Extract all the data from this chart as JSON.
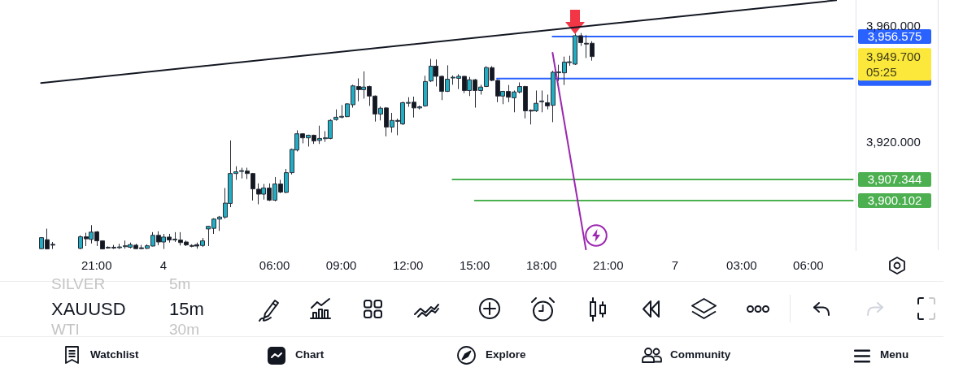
{
  "chart_data": {
    "type": "candlestick",
    "title": "XAUUSD",
    "subtitle": "15m",
    "categories": [
      null,
      null,
      null,
      null,
      null,
      null,
      null,
      null,
      null,
      null,
      "21:00",
      null,
      null,
      null,
      null,
      null,
      null,
      null,
      null,
      null,
      null,
      null,
      "4",
      null,
      null,
      null,
      null,
      null,
      null,
      null,
      null,
      null,
      null,
      null,
      null,
      null,
      null,
      null,
      null,
      null,
      null,
      null,
      "06:00",
      null,
      null,
      null,
      null,
      null,
      null,
      null,
      null,
      null,
      null,
      null,
      "09:00",
      null,
      null,
      null,
      null,
      null,
      null,
      null,
      null,
      null,
      null,
      null,
      "12:00",
      null,
      null,
      null,
      null,
      null,
      null,
      null,
      null,
      null,
      null,
      null,
      "15:00",
      null,
      null,
      null,
      null,
      null,
      null,
      null,
      null,
      null,
      null,
      null,
      "18:00",
      null,
      null,
      null,
      null,
      null,
      null,
      null,
      null,
      null,
      null,
      null,
      "21:00",
      null,
      null,
      null,
      null,
      null,
      null,
      null,
      null,
      null,
      null,
      null,
      "7",
      null,
      null,
      null,
      null,
      null,
      null,
      null,
      null,
      null,
      null,
      null,
      "03:00",
      null,
      null,
      null,
      null,
      null,
      null,
      null,
      null,
      null,
      null,
      null,
      "06:00",
      null,
      null,
      null,
      null,
      null,
      null,
      null,
      null
    ],
    "ohlc": [
      [
        3883.5,
        3887.5,
        3883.3,
        3887.3
      ],
      [
        3886.6,
        3890.4,
        3883.3,
        3883.4
      ],
      [
        3885.0,
        3885.8,
        3883.4,
        3884.8
      ],
      null,
      null,
      null,
      null,
      [
        3883.6,
        3888.1,
        3883.3,
        3887.6
      ],
      [
        3887.6,
        3889.0,
        3884.4,
        3886.9
      ],
      [
        3886.7,
        3891.6,
        3885.3,
        3889.2
      ],
      [
        3889.3,
        3889.6,
        3884.4,
        3886.2
      ],
      [
        3886.2,
        3886.4,
        3883.3,
        3883.4
      ],
      [
        3883.9,
        3884.3,
        3883.5,
        3884.0
      ],
      [
        3884.0,
        3884.8,
        3883.4,
        3883.9
      ],
      [
        3883.9,
        3885.2,
        3883.4,
        3884.1
      ],
      [
        3884.2,
        3886.3,
        3883.5,
        3884.5
      ],
      [
        3884.0,
        3885.6,
        3883.6,
        3884.9
      ],
      [
        3884.7,
        3885.2,
        3883.4,
        3883.5
      ],
      [
        3883.8,
        3884.8,
        3883.4,
        3883.7
      ],
      [
        3883.6,
        3885.0,
        3883.4,
        3884.5
      ],
      [
        3884.4,
        3889.2,
        3884.3,
        3888.1
      ],
      [
        3888.1,
        3889.5,
        3884.7,
        3885.8
      ],
      [
        3885.8,
        3888.6,
        3883.4,
        3887.5
      ],
      [
        3887.5,
        3888.6,
        3885.6,
        3886.5
      ],
      [
        3886.7,
        3889.2,
        3885.8,
        3886.8
      ],
      [
        3886.5,
        3889.2,
        3884.6,
        3885.6
      ],
      [
        3885.8,
        3886.3,
        3884.4,
        3884.8
      ],
      [
        3884.6,
        3885.0,
        3884.0,
        3884.5
      ],
      [
        3884.9,
        3885.6,
        3883.5,
        3884.4
      ],
      [
        3884.6,
        3887.2,
        3884.1,
        3886.2
      ],
      [
        3890.3,
        3891.4,
        3884.4,
        3891.2
      ],
      [
        3890.5,
        3894.0,
        3888.6,
        3893.7
      ],
      [
        3893.7,
        3894.8,
        3889.6,
        3894.4
      ],
      [
        3894.4,
        3904.4,
        3893.8,
        3899.2
      ],
      [
        3899.1,
        3920.8,
        3897.8,
        3909.4
      ],
      [
        3909.4,
        3911.9,
        3907.2,
        3910.0
      ],
      [
        3910.3,
        3911.4,
        3907.7,
        3910.4
      ],
      [
        3910.3,
        3911.4,
        3907.5,
        3909.4
      ],
      [
        3909.4,
        3909.6,
        3900.1,
        3904.1
      ],
      [
        3904.0,
        3906.0,
        3898.8,
        3902.3
      ],
      [
        3902.3,
        3905.8,
        3900.4,
        3904.4
      ],
      [
        3904.4,
        3906.0,
        3899.9,
        3900.2
      ],
      [
        3900.2,
        3908.2,
        3899.8,
        3905.8
      ],
      [
        3905.8,
        3907.2,
        3902.6,
        3903.0
      ],
      [
        3902.9,
        3911.0,
        3902.6,
        3909.7
      ],
      [
        3909.7,
        3918.0,
        3909.1,
        3917.7
      ],
      [
        3917.5,
        3924.3,
        3917.0,
        3923.1
      ],
      [
        3923.1,
        3923.3,
        3919.8,
        3921.7
      ],
      [
        3921.7,
        3922.8,
        3918.7,
        3922.6
      ],
      [
        3922.6,
        3922.8,
        3919.6,
        3920.6
      ],
      [
        3920.8,
        3925.9,
        3919.6,
        3921.5
      ],
      [
        3921.6,
        3924.0,
        3920.3,
        3921.7
      ],
      [
        3921.5,
        3928.1,
        3921.2,
        3927.7
      ],
      [
        3928.0,
        3931.5,
        3927.6,
        3928.8
      ],
      [
        3928.9,
        3933.0,
        3928.4,
        3929.1
      ],
      [
        3929.0,
        3933.6,
        3928.8,
        3933.4
      ],
      [
        3933.1,
        3940.0,
        3932.1,
        3939.6
      ],
      [
        3939.4,
        3942.2,
        3934.3,
        3938.3
      ],
      [
        3938.3,
        3944.6,
        3935.2,
        3939.2
      ],
      [
        3939.4,
        3939.7,
        3932.7,
        3936.1
      ],
      [
        3936.1,
        3936.3,
        3927.3,
        3929.9
      ],
      [
        3929.9,
        3932.5,
        3927.7,
        3931.9
      ],
      [
        3932.0,
        3932.3,
        3922.2,
        3925.4
      ],
      [
        3925.4,
        3930.3,
        3923.5,
        3927.7
      ],
      [
        3927.7,
        3928.3,
        3922.6,
        3927.4
      ],
      [
        3926.5,
        3934.2,
        3926.1,
        3933.8
      ],
      [
        3933.8,
        3935.7,
        3932.4,
        3933.9
      ],
      [
        3934.0,
        3935.9,
        3928.7,
        3932.0
      ],
      [
        3932.0,
        3932.8,
        3931.5,
        3932.4
      ],
      [
        3932.7,
        3943.1,
        3932.4,
        3941.1
      ],
      [
        3941.3,
        3948.9,
        3940.9,
        3946.4
      ],
      [
        3946.4,
        3948.7,
        3939.4,
        3942.9
      ],
      [
        3942.9,
        3943.2,
        3934.7,
        3937.7
      ],
      [
        3937.7,
        3946.7,
        3937.5,
        3941.9
      ],
      [
        3942.5,
        3943.2,
        3940.0,
        3942.6
      ],
      [
        3942.2,
        3943.6,
        3938.5,
        3942.9
      ],
      [
        3942.9,
        3943.0,
        3937.1,
        3938.0
      ],
      [
        3938.0,
        3942.7,
        3936.1,
        3941.7
      ],
      [
        3941.7,
        3942.0,
        3932.1,
        3938.0
      ],
      [
        3938.0,
        3940.0,
        3936.6,
        3939.2
      ],
      [
        3939.4,
        3946.4,
        3939.2,
        3945.9
      ],
      [
        3945.9,
        3946.4,
        3941.2,
        3941.5
      ],
      [
        3941.5,
        3941.7,
        3934.0,
        3936.1
      ],
      [
        3936.1,
        3937.9,
        3933.3,
        3937.7
      ],
      [
        3937.7,
        3939.9,
        3934.0,
        3935.7
      ],
      [
        3935.5,
        3938.0,
        3930.5,
        3937.5
      ],
      [
        3937.5,
        3940.8,
        3937.0,
        3939.4
      ],
      [
        3939.4,
        3939.6,
        3928.4,
        3931.0
      ],
      [
        3931.2,
        3931.5,
        3926.3,
        3931.0
      ],
      [
        3931.0,
        3938.0,
        3930.6,
        3933.6
      ],
      [
        3934.3,
        3938.0,
        3930.5,
        3934.4
      ],
      [
        3933.8,
        3936.6,
        3931.5,
        3932.7
      ],
      [
        3932.9,
        3944.8,
        3927.1,
        3944.3
      ],
      [
        3944.3,
        3946.9,
        3941.3,
        3944.4
      ],
      [
        3944.1,
        3949.7,
        3939.9,
        3947.8
      ],
      [
        3947.8,
        3950.0,
        3946.5,
        3947.9
      ],
      [
        3947.1,
        3957.6,
        3946.8,
        3956.9
      ],
      [
        3956.9,
        3957.8,
        3953.4,
        3954.5
      ],
      [
        3954.3,
        3957.1,
        3949.2,
        3954.2
      ],
      [
        3954.3,
        3955.0,
        3948.3,
        3949.7
      ],
      null,
      null,
      null,
      null,
      null,
      null,
      null,
      null,
      null,
      null,
      null,
      null,
      null,
      null,
      null,
      null,
      null,
      null,
      null,
      null,
      null,
      null,
      null,
      null,
      null,
      null,
      null,
      null,
      null,
      null,
      null,
      null,
      null,
      null,
      null,
      null,
      null,
      null,
      null,
      null,
      null,
      null,
      null,
      null,
      null,
      null,
      null
    ],
    "colors": [
      "#22adc2",
      "#131722",
      "#131722",
      null,
      null,
      null,
      null,
      "#22adc2",
      "#131722",
      "#22adc2",
      "#131722",
      "#131722",
      "#22adc2",
      "#131722",
      "#22adc2",
      "#22adc2",
      "#22adc2",
      "#131722",
      "#131722",
      "#22adc2",
      "#22adc2",
      "#131722",
      "#22adc2",
      "#131722",
      "#22adc2",
      "#131722",
      "#131722",
      "#131722",
      "#131722",
      "#22adc2",
      "#22adc2",
      "#22adc2",
      "#22adc2",
      "#22adc2",
      "#22adc2",
      "#22adc2",
      "#22adc2",
      "#131722",
      "#131722",
      "#131722",
      "#22adc2",
      "#131722",
      "#22adc2",
      "#131722",
      "#22adc2",
      "#22adc2",
      "#22adc2",
      "#131722",
      "#22adc2",
      "#131722",
      "#22adc2",
      "#22adc2",
      "#22adc2",
      "#22adc2",
      "#22adc2",
      "#22adc2",
      "#22adc2",
      "#131722",
      "#22adc2",
      "#131722",
      "#131722",
      "#22adc2",
      "#131722",
      "#22adc2",
      "#131722",
      "#22adc2",
      "#22adc2",
      "#131722",
      "#22adc2",
      "#22adc2",
      "#22adc2",
      "#131722",
      "#131722",
      "#22adc2",
      "#22adc2",
      "#22adc2",
      "#131722",
      "#22adc2",
      "#131722",
      "#22adc2",
      "#22adc2",
      "#131722",
      "#131722",
      "#22adc2",
      "#131722",
      "#22adc2",
      "#22adc2",
      "#131722",
      "#131722",
      "#22adc2",
      "#22adc2",
      "#131722",
      "#22adc2",
      "#22adc2",
      "#22adc2",
      "#22adc2",
      "#22adc2",
      "#131722",
      "#131722",
      "#131722",
      null,
      null,
      null,
      null,
      null,
      null,
      null,
      null,
      null,
      null,
      null,
      null,
      null,
      null,
      null,
      null,
      null,
      null,
      null,
      null,
      null,
      null,
      null,
      null,
      null,
      null,
      null,
      null,
      null,
      null,
      null,
      null,
      null,
      null,
      null,
      null,
      null,
      null,
      null,
      null,
      null,
      null,
      null,
      null,
      null,
      null,
      null
    ],
    "series": [
      {
        "type": "line",
        "color": "#131722",
        "values": [
          3940.6,
          null,
          null,
          null,
          null,
          null,
          null,
          null,
          null,
          null,
          null,
          null,
          null,
          null,
          null,
          null,
          null,
          null,
          null,
          null,
          null,
          null,
          null,
          null,
          null,
          null,
          null,
          null,
          null,
          null,
          null,
          null,
          null,
          null,
          null,
          null,
          null,
          null,
          null,
          null,
          null,
          null,
          null,
          null,
          null,
          null,
          null,
          null,
          null,
          null,
          null,
          null,
          null,
          null,
          null,
          null,
          null,
          null,
          null,
          null,
          null,
          null,
          null,
          null,
          null,
          null,
          null,
          null,
          null,
          null,
          null,
          null,
          null,
          null,
          null,
          null,
          null,
          null,
          null,
          null,
          null,
          null,
          null,
          null,
          null,
          null,
          null,
          null,
          null,
          null,
          null,
          null,
          null,
          null,
          null,
          null,
          null,
          null,
          null,
          null,
          null,
          null,
          null,
          null,
          null,
          null,
          null,
          null,
          null,
          null,
          null,
          null,
          null,
          null,
          null,
          null,
          null,
          null,
          null,
          null,
          null,
          null,
          null,
          null,
          null,
          null,
          null,
          null,
          null,
          null,
          null,
          null,
          null,
          null,
          null,
          null,
          null,
          null,
          null,
          null,
          null,
          null,
          null,
          3969.1,
          null,
          null,
          null
        ]
      },
      {
        "type": "line",
        "color": "#9c27b0",
        "values": [
          null,
          null,
          null,
          null,
          null,
          null,
          null,
          null,
          null,
          null,
          null,
          null,
          null,
          null,
          null,
          null,
          null,
          null,
          null,
          null,
          null,
          null,
          null,
          null,
          null,
          null,
          null,
          null,
          null,
          null,
          null,
          null,
          null,
          null,
          null,
          null,
          null,
          null,
          null,
          null,
          null,
          null,
          null,
          null,
          null,
          null,
          null,
          null,
          null,
          null,
          null,
          null,
          null,
          null,
          null,
          null,
          null,
          null,
          null,
          null,
          null,
          null,
          null,
          null,
          null,
          null,
          null,
          null,
          null,
          null,
          null,
          null,
          null,
          null,
          null,
          null,
          null,
          null,
          null,
          null,
          null,
          null,
          null,
          null,
          null,
          null,
          null,
          null,
          null,
          null,
          null,
          null,
          3951.0,
          null,
          null,
          null,
          null,
          null,
          3883.2,
          null,
          null,
          null,
          null,
          null,
          null,
          null,
          null,
          null,
          null,
          null,
          null,
          null,
          null,
          null,
          null,
          null,
          null,
          null,
          null,
          null,
          null,
          null,
          null,
          null,
          null,
          null,
          null,
          null,
          null,
          null,
          null,
          null,
          null,
          null,
          null,
          null,
          null,
          null,
          null,
          null,
          null,
          null,
          null,
          null,
          null,
          null,
          null
        ]
      },
      {
        "type": "line",
        "color": "#2962ff",
        "values": [
          null,
          null,
          null,
          null,
          null,
          null,
          null,
          null,
          null,
          null,
          null,
          null,
          null,
          null,
          null,
          null,
          null,
          null,
          null,
          null,
          null,
          null,
          null,
          null,
          null,
          null,
          null,
          null,
          null,
          null,
          null,
          null,
          null,
          null,
          null,
          null,
          null,
          null,
          null,
          null,
          null,
          null,
          null,
          null,
          null,
          null,
          null,
          null,
          null,
          null,
          null,
          null,
          null,
          null,
          null,
          null,
          null,
          null,
          null,
          null,
          null,
          null,
          null,
          null,
          null,
          null,
          null,
          null,
          null,
          null,
          null,
          null,
          null,
          null,
          null,
          null,
          null,
          null,
          null,
          null,
          null,
          null,
          null,
          null,
          null,
          null,
          null,
          null,
          null,
          null,
          null,
          null,
          3956.575,
          null,
          null,
          null,
          null,
          null,
          null,
          null,
          null,
          null,
          null,
          null,
          null,
          null,
          null,
          null,
          null,
          null,
          null,
          null,
          null,
          null,
          null,
          null,
          null,
          null,
          null,
          null,
          null,
          null,
          null,
          null,
          null,
          null,
          null,
          null,
          null,
          null,
          null,
          null,
          null,
          null,
          null,
          null,
          null,
          null,
          null,
          null,
          null,
          null,
          null,
          null,
          null,
          null,
          3956.575
        ],
        "value_labels": [
          null,
          null,
          null,
          null,
          null,
          null,
          null,
          null,
          null,
          null,
          null,
          null,
          null,
          null,
          null,
          null,
          null,
          null,
          null,
          null,
          null,
          null,
          null,
          null,
          null,
          null,
          null,
          null,
          null,
          null,
          null,
          null,
          null,
          null,
          null,
          null,
          null,
          null,
          null,
          null,
          null,
          null,
          null,
          null,
          null,
          null,
          null,
          null,
          null,
          null,
          null,
          null,
          null,
          null,
          null,
          null,
          null,
          null,
          null,
          null,
          null,
          null,
          null,
          null,
          null,
          null,
          null,
          null,
          null,
          null,
          null,
          null,
          null,
          null,
          null,
          null,
          null,
          null,
          null,
          null,
          null,
          null,
          null,
          null,
          null,
          null,
          null,
          null,
          null,
          null,
          null,
          null,
          null,
          null,
          null,
          null,
          null,
          null,
          null,
          null,
          null,
          null,
          null,
          null,
          null,
          null,
          null,
          null,
          null,
          null,
          null,
          null,
          null,
          null,
          null,
          null,
          null,
          null,
          null,
          null,
          null,
          null,
          null,
          null,
          null,
          null,
          null,
          null,
          null,
          null,
          null,
          null,
          null,
          null,
          null,
          null,
          null,
          null,
          null,
          null,
          null,
          null,
          null,
          null,
          null,
          null,
          "3,956.575"
        ]
      },
      {
        "type": "line",
        "color": "#2962ff",
        "values": [
          null,
          null,
          null,
          null,
          null,
          null,
          null,
          null,
          null,
          null,
          null,
          null,
          null,
          null,
          null,
          null,
          null,
          null,
          null,
          null,
          null,
          null,
          null,
          null,
          null,
          null,
          null,
          null,
          null,
          null,
          null,
          null,
          null,
          null,
          null,
          null,
          null,
          null,
          null,
          null,
          null,
          null,
          null,
          null,
          null,
          null,
          null,
          null,
          null,
          null,
          null,
          null,
          null,
          null,
          null,
          null,
          null,
          null,
          null,
          null,
          null,
          null,
          null,
          null,
          null,
          null,
          null,
          null,
          null,
          null,
          null,
          null,
          null,
          null,
          null,
          null,
          null,
          null,
          null,
          null,
          null,
          null,
          3942.1,
          null,
          null,
          null,
          null,
          null,
          null,
          null,
          null,
          null,
          null,
          null,
          null,
          null,
          null,
          null,
          null,
          null,
          null,
          null,
          null,
          null,
          null,
          null,
          null,
          null,
          null,
          null,
          null,
          null,
          null,
          null,
          null,
          null,
          null,
          null,
          null,
          null,
          null,
          null,
          null,
          null,
          null,
          null,
          null,
          null,
          null,
          null,
          null,
          null,
          null,
          null,
          null,
          null,
          null,
          null,
          null,
          null,
          null,
          null,
          null,
          null,
          null,
          null,
          3942.1
        ]
      },
      {
        "type": "line",
        "color": "#4caf50",
        "values": [
          null,
          null,
          null,
          null,
          null,
          null,
          null,
          null,
          null,
          null,
          null,
          null,
          null,
          null,
          null,
          null,
          null,
          null,
          null,
          null,
          null,
          null,
          null,
          null,
          null,
          null,
          null,
          null,
          null,
          null,
          null,
          null,
          null,
          null,
          null,
          null,
          null,
          null,
          null,
          null,
          null,
          null,
          null,
          null,
          null,
          null,
          null,
          null,
          null,
          null,
          null,
          null,
          null,
          null,
          null,
          null,
          null,
          null,
          null,
          null,
          null,
          null,
          null,
          null,
          null,
          null,
          null,
          null,
          null,
          null,
          null,
          null,
          null,
          null,
          3907.344,
          null,
          null,
          null,
          null,
          null,
          null,
          null,
          null,
          null,
          null,
          null,
          null,
          null,
          null,
          null,
          null,
          null,
          null,
          null,
          null,
          null,
          null,
          null,
          null,
          null,
          null,
          null,
          null,
          null,
          null,
          null,
          null,
          null,
          null,
          null,
          null,
          null,
          null,
          null,
          null,
          null,
          null,
          null,
          null,
          null,
          null,
          null,
          null,
          null,
          null,
          null,
          null,
          null,
          null,
          null,
          null,
          null,
          null,
          null,
          null,
          null,
          null,
          null,
          null,
          null,
          null,
          null,
          null,
          null,
          null,
          null,
          3907.344
        ],
        "value_labels": [
          null,
          null,
          null,
          null,
          null,
          null,
          null,
          null,
          null,
          null,
          null,
          null,
          null,
          null,
          null,
          null,
          null,
          null,
          null,
          null,
          null,
          null,
          null,
          null,
          null,
          null,
          null,
          null,
          null,
          null,
          null,
          null,
          null,
          null,
          null,
          null,
          null,
          null,
          null,
          null,
          null,
          null,
          null,
          null,
          null,
          null,
          null,
          null,
          null,
          null,
          null,
          null,
          null,
          null,
          null,
          null,
          null,
          null,
          null,
          null,
          null,
          null,
          null,
          null,
          null,
          null,
          null,
          null,
          null,
          null,
          null,
          null,
          null,
          null,
          null,
          null,
          null,
          null,
          null,
          null,
          null,
          null,
          null,
          null,
          null,
          null,
          null,
          null,
          null,
          null,
          null,
          null,
          null,
          null,
          null,
          null,
          null,
          null,
          null,
          null,
          null,
          null,
          null,
          null,
          null,
          null,
          null,
          null,
          null,
          null,
          null,
          null,
          null,
          null,
          null,
          null,
          null,
          null,
          null,
          null,
          null,
          null,
          null,
          null,
          null,
          null,
          null,
          null,
          null,
          null,
          null,
          null,
          null,
          null,
          null,
          null,
          null,
          null,
          null,
          null,
          null,
          null,
          null,
          null,
          null,
          null,
          "3,907.344"
        ]
      },
      {
        "type": "line",
        "color": "#4caf50",
        "values": [
          null,
          null,
          null,
          null,
          null,
          null,
          null,
          null,
          null,
          null,
          null,
          null,
          null,
          null,
          null,
          null,
          null,
          null,
          null,
          null,
          null,
          null,
          null,
          null,
          null,
          null,
          null,
          null,
          null,
          null,
          null,
          null,
          null,
          null,
          null,
          null,
          null,
          null,
          null,
          null,
          null,
          null,
          null,
          null,
          null,
          null,
          null,
          null,
          null,
          null,
          null,
          null,
          null,
          null,
          null,
          null,
          null,
          null,
          null,
          null,
          null,
          null,
          null,
          null,
          null,
          null,
          null,
          null,
          null,
          null,
          null,
          null,
          null,
          null,
          null,
          null,
          null,
          null,
          3900.102,
          null,
          null,
          null,
          null,
          null,
          null,
          null,
          null,
          null,
          null,
          null,
          null,
          null,
          null,
          null,
          null,
          null,
          null,
          null,
          null,
          null,
          null,
          null,
          null,
          null,
          null,
          null,
          null,
          null,
          null,
          null,
          null,
          null,
          null,
          null,
          null,
          null,
          null,
          null,
          null,
          null,
          null,
          null,
          null,
          null,
          null,
          null,
          null,
          null,
          null,
          null,
          null,
          null,
          null,
          null,
          null,
          null,
          null,
          null,
          null,
          null,
          null,
          null,
          null,
          null,
          null,
          null,
          3900.102
        ],
        "value_labels": [
          null,
          null,
          null,
          null,
          null,
          null,
          null,
          null,
          null,
          null,
          null,
          null,
          null,
          null,
          null,
          null,
          null,
          null,
          null,
          null,
          null,
          null,
          null,
          null,
          null,
          null,
          null,
          null,
          null,
          null,
          null,
          null,
          null,
          null,
          null,
          null,
          null,
          null,
          null,
          null,
          null,
          null,
          null,
          null,
          null,
          null,
          null,
          null,
          null,
          null,
          null,
          null,
          null,
          null,
          null,
          null,
          null,
          null,
          null,
          null,
          null,
          null,
          null,
          null,
          null,
          null,
          null,
          null,
          null,
          null,
          null,
          null,
          null,
          null,
          null,
          null,
          null,
          null,
          null,
          null,
          null,
          null,
          null,
          null,
          null,
          null,
          null,
          null,
          null,
          null,
          null,
          null,
          null,
          null,
          null,
          null,
          null,
          null,
          null,
          null,
          null,
          null,
          null,
          null,
          null,
          null,
          null,
          null,
          null,
          null,
          null,
          null,
          null,
          null,
          null,
          null,
          null,
          null,
          null,
          null,
          null,
          null,
          null,
          null,
          null,
          null,
          null,
          null,
          null,
          null,
          null,
          null,
          null,
          null,
          null,
          null,
          null,
          null,
          null,
          null,
          null,
          null,
          null,
          null,
          null,
          null,
          "3,900.102"
        ]
      }
    ],
    "ylim": [
      3883,
      3969.2
    ],
    "yticks": [
      {
        "value": 3920,
        "label": "3,920.000"
      },
      {
        "value": 3960,
        "label": "3,960.000"
      }
    ],
    "annotations": [
      "3,949.700\n05:25",
      "SILVER",
      "5m",
      "WTI",
      "30m",
      "Watchlist",
      "Chart",
      "Explore",
      "Community",
      "Menu"
    ]
  }
}
